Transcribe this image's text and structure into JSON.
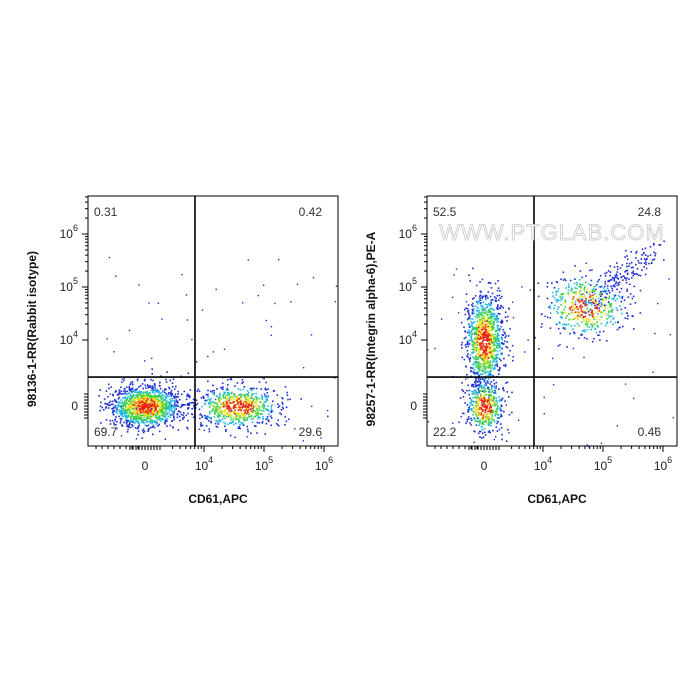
{
  "watermark": "WWW.PTGLAB.COM",
  "colors": {
    "axis": "#000000",
    "gate": "#000000",
    "density_low": "#1f2fd0",
    "density_mid_low": "#22b8e6",
    "density_mid": "#3fd13f",
    "density_mid_high": "#f0e020",
    "density_high": "#e8201a"
  },
  "chart_data": [
    {
      "type": "scatter",
      "plot_style": "flow-cytometry-density-pseudocolor",
      "xlabel": "CD61,APC",
      "ylabel": "98136-1-RR(Rabbit isotype)",
      "x_ticks": [
        {
          "value": 0,
          "base": "0",
          "exp": ""
        },
        {
          "value": 4,
          "base": "10",
          "exp": "4"
        },
        {
          "value": 5,
          "base": "10",
          "exp": "5"
        },
        {
          "value": 6,
          "base": "10",
          "exp": "6"
        }
      ],
      "y_ticks": [
        {
          "value": 0,
          "base": "0",
          "exp": ""
        },
        {
          "value": 4,
          "base": "10",
          "exp": "4"
        },
        {
          "value": 5,
          "base": "10",
          "exp": "5"
        },
        {
          "value": 6,
          "base": "10",
          "exp": "6"
        }
      ],
      "x_scale": "biexponential",
      "y_scale": "biexponential",
      "gate": {
        "x": 3.85,
        "y": 3.3
      },
      "quadrants": [
        {
          "position": "top-left",
          "percent": "0.31"
        },
        {
          "position": "top-right",
          "percent": "0.42"
        },
        {
          "position": "bottom-left",
          "percent": "69.7"
        },
        {
          "position": "bottom-right",
          "percent": "29.6"
        }
      ],
      "populations": [
        {
          "cx": 0.0,
          "cy": 0.0,
          "sx": 0.55,
          "sy": 0.35,
          "count": 1300
        },
        {
          "cx": 4.55,
          "cy": 0.0,
          "sx": 0.35,
          "sy": 0.35,
          "count": 700
        }
      ]
    },
    {
      "type": "scatter",
      "plot_style": "flow-cytometry-density-pseudocolor",
      "xlabel": "CD61,APC",
      "ylabel": "98257-1-RR(Integrin alpha-6),PE-A",
      "x_ticks": [
        {
          "value": 0,
          "base": "0",
          "exp": ""
        },
        {
          "value": 4,
          "base": "10",
          "exp": "4"
        },
        {
          "value": 5,
          "base": "10",
          "exp": "5"
        },
        {
          "value": 6,
          "base": "10",
          "exp": "6"
        }
      ],
      "y_ticks": [
        {
          "value": 0,
          "base": "0",
          "exp": ""
        },
        {
          "value": 4,
          "base": "10",
          "exp": "4"
        },
        {
          "value": 5,
          "base": "10",
          "exp": "5"
        },
        {
          "value": 6,
          "base": "10",
          "exp": "6"
        }
      ],
      "x_scale": "biexponential",
      "y_scale": "biexponential",
      "gate": {
        "x": 3.85,
        "y": 3.3
      },
      "quadrants": [
        {
          "position": "top-left",
          "percent": "52.5"
        },
        {
          "position": "top-right",
          "percent": "24.8"
        },
        {
          "position": "bottom-left",
          "percent": "22.2"
        },
        {
          "position": "bottom-right",
          "percent": "0.46"
        }
      ],
      "populations": [
        {
          "cx": 0.0,
          "cy": 4.0,
          "sx": 0.3,
          "sy": 0.45,
          "count": 1050
        },
        {
          "cx": 0.0,
          "cy": 0.0,
          "sx": 0.3,
          "sy": 0.45,
          "count": 450
        },
        {
          "cx": 4.7,
          "cy": 4.65,
          "sx": 0.35,
          "sy": 0.3,
          "count": 650,
          "trail_to": [
            5.8,
            5.7
          ]
        }
      ]
    }
  ]
}
